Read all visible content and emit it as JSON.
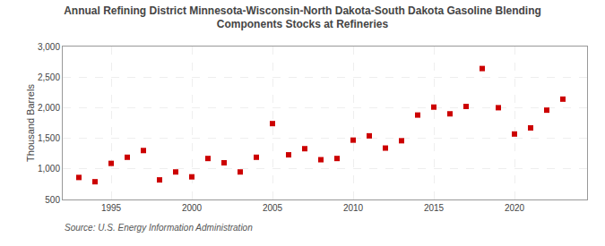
{
  "chart_data": {
    "type": "scatter",
    "title": "Annual Refining District Minnesota-Wisconsin-North Dakota-South Dakota Gasoline Blending\nComponents Stocks at Refineries",
    "ylabel": "Thousand Barrels",
    "annotations": [
      "Source: U.S. Energy Information Administration"
    ],
    "x": [
      1993,
      1994,
      1995,
      1996,
      1997,
      1998,
      1999,
      2000,
      2001,
      2002,
      2003,
      2004,
      2005,
      2006,
      2007,
      2008,
      2009,
      2010,
      2011,
      2012,
      2013,
      2014,
      2015,
      2016,
      2017,
      2018,
      2019,
      2020,
      2021,
      2022,
      2023
    ],
    "values": [
      860,
      790,
      1090,
      1190,
      1300,
      820,
      950,
      870,
      1170,
      1100,
      950,
      1190,
      1740,
      1230,
      1330,
      1150,
      1170,
      1470,
      1540,
      1340,
      1460,
      1880,
      2010,
      1900,
      2020,
      2640,
      2000,
      1570,
      1670,
      1960,
      2140
    ],
    "color": "#cc0000",
    "marker": "square",
    "xlim": [
      1992,
      2024.5
    ],
    "ylim": [
      500,
      3000
    ],
    "xticks": [
      1995,
      2000,
      2005,
      2010,
      2015,
      2020
    ],
    "yticks": [
      500,
      {
        "value": 1000,
        "label": "1,000"
      },
      {
        "value": 1500,
        "label": "1,500"
      },
      {
        "value": 2000,
        "label": "2,000"
      },
      {
        "value": 2500,
        "label": "2,500"
      },
      {
        "value": 3000,
        "label": "3,000"
      }
    ],
    "grid": true
  }
}
